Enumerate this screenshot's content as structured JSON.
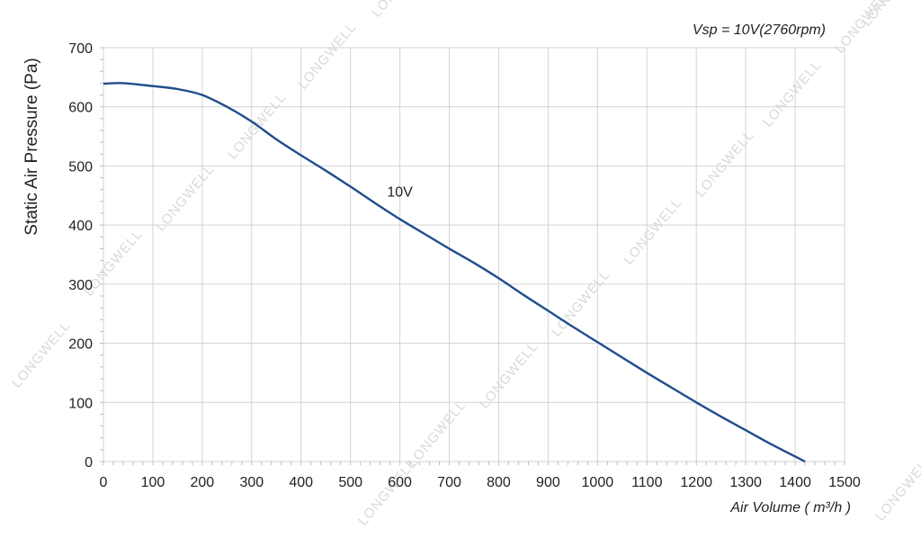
{
  "chart_data": {
    "type": "line",
    "title": "Vsp = 10V(2760rpm)",
    "xlabel": "Air Volume ( m³/h )",
    "ylabel": "Static Air Pressure  (Pa)",
    "xlim": [
      0,
      1500
    ],
    "ylim": [
      0,
      700
    ],
    "xticks": [
      "0",
      "100",
      "200",
      "300",
      "400",
      "500",
      "600",
      "700",
      "800",
      "900",
      "1000",
      "1100",
      "1200",
      "1300",
      "1400",
      "1500"
    ],
    "yticks": [
      "0",
      "100",
      "200",
      "300",
      "400",
      "500",
      "600",
      "700"
    ],
    "grid": true,
    "series": [
      {
        "name": "10V",
        "color": "#1f4e8c",
        "points": [
          [
            0,
            639
          ],
          [
            40,
            640
          ],
          [
            100,
            635
          ],
          [
            150,
            630
          ],
          [
            200,
            620
          ],
          [
            250,
            600
          ],
          [
            300,
            575
          ],
          [
            350,
            545
          ],
          [
            400,
            518
          ],
          [
            450,
            492
          ],
          [
            500,
            465
          ],
          [
            550,
            437
          ],
          [
            600,
            410
          ],
          [
            650,
            385
          ],
          [
            700,
            360
          ],
          [
            750,
            336
          ],
          [
            800,
            310
          ],
          [
            850,
            282
          ],
          [
            900,
            255
          ],
          [
            950,
            228
          ],
          [
            1000,
            202
          ],
          [
            1050,
            176
          ],
          [
            1100,
            150
          ],
          [
            1150,
            125
          ],
          [
            1200,
            100
          ],
          [
            1250,
            76
          ],
          [
            1300,
            53
          ],
          [
            1350,
            30
          ],
          [
            1420,
            0
          ]
        ]
      }
    ],
    "annotations": [
      {
        "text": "10V",
        "x": 600,
        "y": 448
      }
    ],
    "watermark": "LONGWELL"
  }
}
